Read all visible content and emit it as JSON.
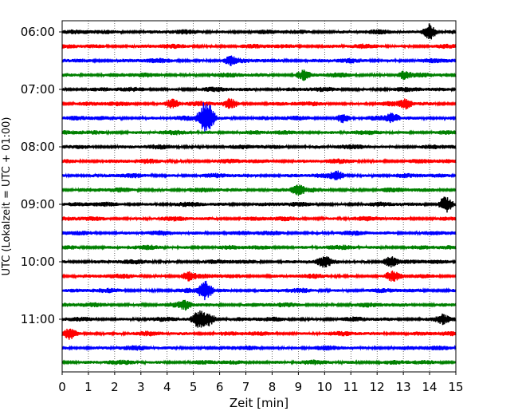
{
  "chart_data": {
    "type": "line",
    "subtype": "helicorder",
    "xlabel": "Zeit  [min]",
    "ylabel": "UTC (Lokalzeit = UTC + 01:00)",
    "xlim": [
      0,
      15
    ],
    "x_ticks": [
      0,
      1,
      2,
      3,
      4,
      5,
      6,
      7,
      8,
      9,
      10,
      11,
      12,
      13,
      14,
      15
    ],
    "y_tick_labels": [
      "06:00",
      "07:00",
      "08:00",
      "09:00",
      "10:00",
      "11:00"
    ],
    "y_tick_row_indices": [
      0,
      4,
      8,
      12,
      16,
      20
    ],
    "row_minutes": 15,
    "colors": [
      "#000000",
      "#ff0000",
      "#0000ff",
      "#008000"
    ],
    "vertical_grid": "dotted",
    "trace_rows": [
      {
        "start": "06:00",
        "bursts": [
          {
            "t": 14.0,
            "amp": 2.6
          }
        ]
      },
      {
        "start": "06:15",
        "bursts": []
      },
      {
        "start": "06:30",
        "bursts": [
          {
            "t": 6.4,
            "amp": 1.2
          }
        ]
      },
      {
        "start": "06:45",
        "bursts": [
          {
            "t": 9.2,
            "amp": 1.3
          },
          {
            "t": 13.0,
            "amp": 1.3
          }
        ]
      },
      {
        "start": "07:00",
        "bursts": []
      },
      {
        "start": "07:15",
        "bursts": [
          {
            "t": 4.2,
            "amp": 1.5
          },
          {
            "t": 6.4,
            "amp": 1.5
          },
          {
            "t": 13.1,
            "amp": 1.3
          }
        ]
      },
      {
        "start": "07:30",
        "bursts": [
          {
            "t": 5.4,
            "amp": 3.5
          },
          {
            "t": 5.6,
            "amp": 3.2
          },
          {
            "t": 10.7,
            "amp": 1.4
          },
          {
            "t": 12.6,
            "amp": 1.4
          }
        ]
      },
      {
        "start": "07:45",
        "bursts": []
      },
      {
        "start": "08:00",
        "bursts": []
      },
      {
        "start": "08:15",
        "bursts": []
      },
      {
        "start": "08:30",
        "bursts": [
          {
            "t": 10.5,
            "amp": 1.2
          }
        ]
      },
      {
        "start": "08:45",
        "bursts": [
          {
            "t": 9.0,
            "amp": 1.6
          }
        ]
      },
      {
        "start": "09:00",
        "bursts": [
          {
            "t": 14.6,
            "amp": 2.8
          }
        ]
      },
      {
        "start": "09:15",
        "bursts": []
      },
      {
        "start": "09:30",
        "bursts": []
      },
      {
        "start": "09:45",
        "bursts": []
      },
      {
        "start": "10:00",
        "bursts": [
          {
            "t": 10.0,
            "amp": 1.4
          },
          {
            "t": 12.5,
            "amp": 1.8
          }
        ]
      },
      {
        "start": "10:15",
        "bursts": [
          {
            "t": 4.8,
            "amp": 1.3
          },
          {
            "t": 12.6,
            "amp": 1.2
          }
        ]
      },
      {
        "start": "10:30",
        "bursts": [
          {
            "t": 5.45,
            "amp": 3.0
          }
        ]
      },
      {
        "start": "10:45",
        "bursts": [
          {
            "t": 4.7,
            "amp": 1.2
          }
        ]
      },
      {
        "start": "11:00",
        "bursts": [
          {
            "t": 5.2,
            "amp": 2.6
          },
          {
            "t": 5.6,
            "amp": 2.0
          },
          {
            "t": 14.5,
            "amp": 1.3
          }
        ]
      },
      {
        "start": "11:15",
        "bursts": [
          {
            "t": 0.3,
            "amp": 1.3
          }
        ]
      },
      {
        "start": "11:30",
        "bursts": []
      },
      {
        "start": "11:45",
        "bursts": []
      }
    ]
  }
}
